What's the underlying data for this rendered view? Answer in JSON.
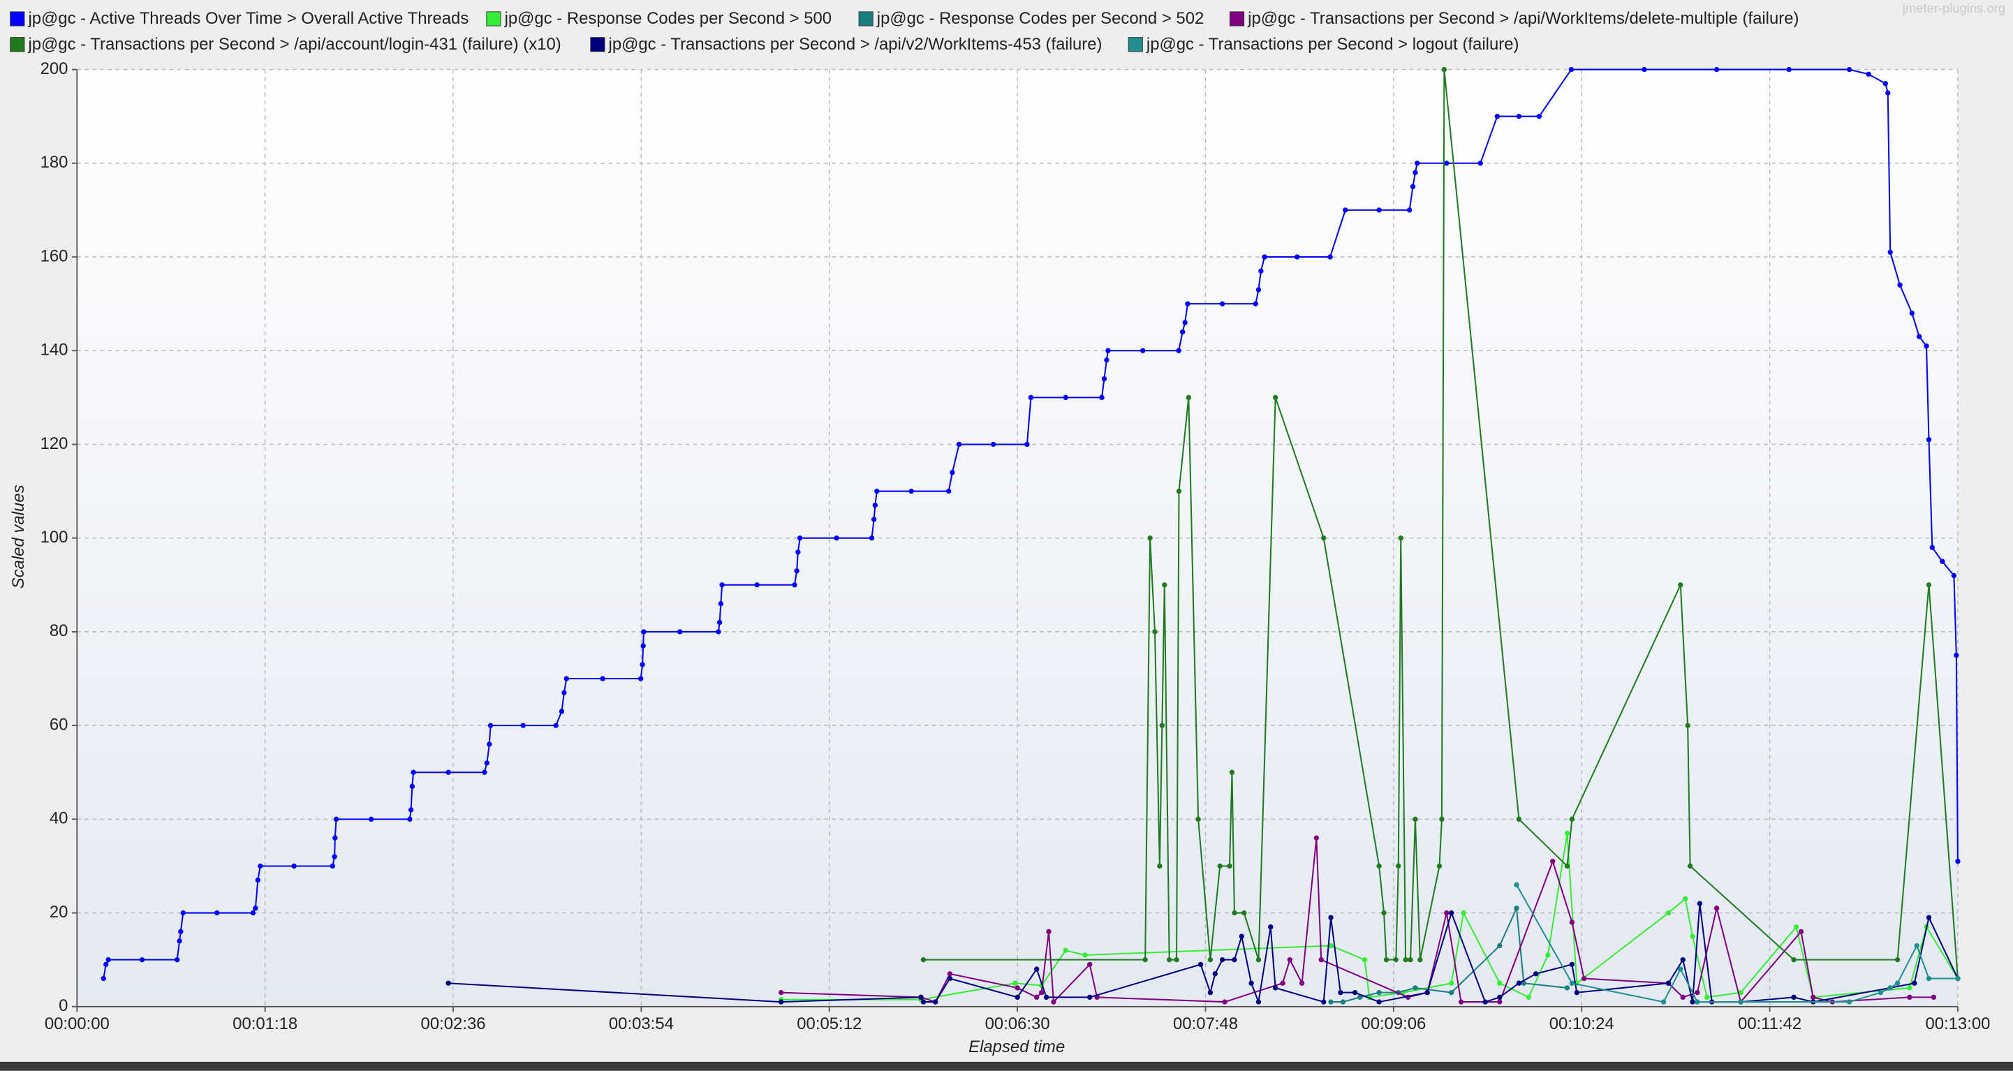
{
  "chart_data": {
    "type": "line",
    "x_label": "Elapsed time",
    "y_label": "Scaled values",
    "watermark": "jmeter-plugins.org",
    "xlim": [
      0,
      780
    ],
    "ylim": [
      0,
      200
    ],
    "xticks": [
      {
        "value": 0,
        "label": "00:00:00"
      },
      {
        "value": 78,
        "label": "00:01:18"
      },
      {
        "value": 156,
        "label": "00:02:36"
      },
      {
        "value": 234,
        "label": "00:03:54"
      },
      {
        "value": 312,
        "label": "00:05:12"
      },
      {
        "value": 390,
        "label": "00:06:30"
      },
      {
        "value": 468,
        "label": "00:07:48"
      },
      {
        "value": 546,
        "label": "00:09:06"
      },
      {
        "value": 624,
        "label": "00:10:24"
      },
      {
        "value": 702,
        "label": "00:11:42"
      },
      {
        "value": 780,
        "label": "00:13:00"
      }
    ],
    "yticks": [
      0,
      20,
      40,
      60,
      80,
      100,
      120,
      140,
      160,
      180,
      200
    ],
    "grid": true,
    "legend": "top",
    "series": [
      {
        "name": "jp@gc - Active Threads Over Time > Overall Active Threads",
        "color": "#0000ff",
        "x": [
          11,
          12,
          13,
          27,
          41.5,
          42.5,
          43,
          44,
          58,
          73,
          74,
          75,
          76,
          90,
          106,
          106.8,
          107,
          107.5,
          122,
          138,
          138.5,
          139,
          139.5,
          154,
          169,
          170,
          171,
          171.5,
          185,
          198.6,
          201,
          202,
          203,
          218,
          233.8,
          234.5,
          234.8,
          235,
          250,
          266,
          266.5,
          267,
          267.5,
          282,
          297.6,
          298.5,
          299,
          299.8,
          315,
          329.6,
          330.5,
          331,
          331.7,
          346,
          361.5,
          363,
          365.8,
          380,
          394,
          395.6,
          410,
          425,
          426,
          427,
          427.6,
          442,
          456.9,
          458.5,
          459.5,
          460.6,
          475,
          488.8,
          490,
          491,
          492.5,
          506,
          519.7,
          526,
          540,
          552.6,
          554,
          555,
          555.8,
          568,
          582,
          589,
          598,
          606.4,
          619.7,
          650,
          680,
          710,
          735,
          743,
          750,
          751,
          752,
          756,
          761,
          764,
          767,
          768,
          769.4,
          773.6,
          778.4,
          779.4,
          780
        ],
        "values": [
          6,
          9,
          10,
          10,
          10,
          14,
          16,
          20,
          20,
          20,
          21,
          27,
          30,
          30,
          30,
          32,
          36,
          40,
          40,
          40,
          42,
          47,
          50,
          50,
          50,
          52,
          56,
          60,
          60,
          60,
          63,
          67,
          70,
          70,
          70,
          73,
          77,
          80,
          80,
          80,
          82,
          86,
          90,
          90,
          90,
          93,
          97,
          100,
          100,
          100,
          104,
          107,
          110,
          110,
          110,
          114,
          120,
          120,
          120,
          130,
          130,
          130,
          134,
          138,
          140,
          140,
          140,
          144,
          146,
          150,
          150,
          150,
          153,
          157,
          160,
          160,
          160,
          170,
          170,
          170,
          175,
          178,
          180,
          180,
          180,
          190,
          190,
          190,
          200,
          200,
          200,
          200,
          200,
          199,
          197,
          195,
          161,
          154,
          148,
          143,
          141,
          121,
          98,
          95,
          92,
          75,
          31
        ]
      },
      {
        "name": "jp@gc - Response Codes per Second > 500",
        "color": "#33ee33",
        "x": [
          292,
          350,
          389,
          400,
          410,
          418,
          520,
          534,
          536,
          550,
          570,
          575,
          590,
          602,
          610,
          618,
          622,
          660,
          667,
          670,
          676,
          690,
          713,
          720,
          760,
          767,
          780
        ],
        "values": [
          1.5,
          1.5,
          5,
          4.5,
          12,
          11,
          13,
          10,
          2,
          3,
          5,
          20,
          5,
          2,
          11,
          37,
          5,
          20,
          23,
          15,
          2,
          3,
          17,
          2,
          4,
          17,
          6
        ]
      },
      {
        "name": "jp@gc - Response Codes per Second > 502",
        "color": "#1a7f7f",
        "x": [
          520,
          525,
          532,
          540,
          548,
          555,
          570,
          590,
          597,
          600,
          618
        ],
        "values": [
          1,
          1,
          2,
          3,
          3,
          4,
          3,
          13,
          21,
          5,
          4
        ]
      },
      {
        "name": "jp@gc - Transactions per Second > /api/WorkItems/delete-multiple (failure)",
        "color": "#800080",
        "x": [
          292,
          350,
          356,
          362,
          390,
          398,
          400,
          403,
          405,
          420,
          423,
          476,
          500,
          503,
          508,
          514,
          516,
          552,
          560,
          568,
          574,
          590,
          612,
          620,
          625,
          660,
          666,
          672,
          680,
          690,
          715,
          720,
          728,
          760,
          770
        ],
        "values": [
          3,
          2,
          1,
          7,
          4,
          2,
          3,
          16,
          1,
          9,
          2,
          1,
          5,
          10,
          5,
          36,
          10,
          2,
          3,
          20,
          1,
          1,
          31,
          18,
          6,
          5,
          2,
          3,
          21,
          1,
          16,
          2,
          1,
          2,
          2
        ]
      },
      {
        "name": "jp@gc - Transactions per Second > /api/account/login-431 (failure) (x10)",
        "color": "#1e7b1e",
        "x": [
          351,
          443,
          445,
          447,
          449,
          450,
          451,
          453,
          456,
          457,
          461,
          465,
          470,
          474,
          478,
          479,
          480,
          484,
          490,
          497,
          517,
          540,
          542,
          543,
          547,
          548,
          549,
          551,
          553,
          555,
          557,
          565,
          566,
          567,
          598,
          618,
          620,
          665,
          668,
          669,
          712,
          755,
          768,
          780
        ],
        "values": [
          10,
          10,
          100,
          80,
          30,
          60,
          90,
          10,
          10,
          110,
          130,
          40,
          10,
          30,
          30,
          50,
          20,
          20,
          10,
          130,
          100,
          30,
          20,
          10,
          10,
          30,
          100,
          10,
          10,
          40,
          10,
          30,
          40,
          200,
          40,
          30,
          40,
          90,
          60,
          30,
          10,
          10,
          90,
          6
        ]
      },
      {
        "name": "jp@gc - Transactions per Second > /api/v2/WorkItems-453 (failure)",
        "color": "#000080",
        "x": [
          154,
          292,
          350,
          351,
          356,
          362,
          390,
          398,
          402,
          420,
          466,
          470,
          472,
          475,
          480,
          483,
          487,
          490,
          495,
          497,
          517,
          520,
          524,
          530,
          540,
          560,
          570,
          584,
          590,
          598,
          605,
          620,
          622,
          660,
          666,
          670,
          673,
          678,
          690,
          712,
          720,
          752,
          762,
          768,
          780
        ],
        "values": [
          5,
          1,
          2,
          1,
          1,
          6,
          2,
          8,
          2,
          2,
          9,
          3,
          7,
          10,
          10,
          15,
          5,
          1,
          17,
          4,
          1,
          19,
          3,
          3,
          1,
          3,
          20,
          1,
          2,
          5,
          7,
          9,
          3,
          5,
          10,
          1,
          22,
          1,
          1,
          2,
          1,
          4,
          5,
          19,
          6
        ]
      },
      {
        "name": "jp@gc - Transactions per Second > logout (failure)",
        "color": "#1f8f8f",
        "x": [
          597,
          620,
          658,
          665,
          672,
          690,
          735,
          748,
          752,
          755,
          763,
          768,
          780
        ],
        "values": [
          26,
          5,
          1,
          8,
          1,
          1,
          1,
          3,
          4,
          5,
          13,
          6,
          6
        ]
      }
    ]
  }
}
